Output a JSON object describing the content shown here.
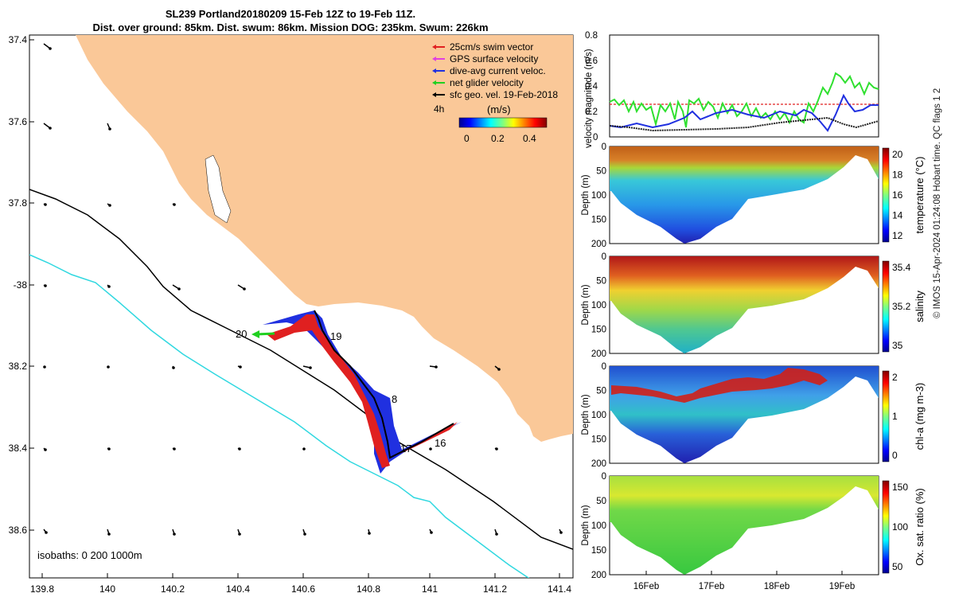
{
  "title": {
    "line1": "SL239 Portland20180209 15-Feb 12Z to 19-Feb 11Z.",
    "line2": "Dist. over ground: 85km. Dist. swum: 86km. Mission DOG: 235km. Swum: 226km"
  },
  "map": {
    "lat_ticks": [
      "37.4",
      "37.6",
      "37.8",
      "-38",
      "38.2",
      "38.4",
      "38.6"
    ],
    "lon_ticks": [
      "139.8",
      "140",
      "140.2",
      "140.4",
      "140.6",
      "140.8",
      "141",
      "141.2",
      "141.4"
    ],
    "legend": [
      {
        "label": "25cm/s swim vector",
        "color": "#e02020"
      },
      {
        "label": "GPS surface velocity",
        "color": "#e040e0"
      },
      {
        "label": "dive-avg current veloc.",
        "color": "#2030e0"
      },
      {
        "label": "net glider velocity",
        "color": "#20d020"
      },
      {
        "label": "sfc geo. vel. 19-Feb-2018",
        "color": "#000000"
      }
    ],
    "colorbar": {
      "prefix": "4h",
      "unit": "(m/s)",
      "ticks": [
        "0",
        "0.2",
        "0.4"
      ]
    },
    "day_labels": [
      "20",
      "19",
      "8",
      "17",
      "16"
    ],
    "isobath_note": "isobaths: 0   200  1000m",
    "colors": {
      "land": "#fac898",
      "shelf_line": "#000000",
      "deep_line": "#30d8e0"
    }
  },
  "panels": {
    "velocity": {
      "ylabel": "velocity magnitude (m/s)",
      "ticks": [
        "0",
        "0.2",
        "0.4",
        "0.6",
        "0.8"
      ]
    },
    "depth_ylabel": "Depth (m)",
    "depth_ticks": [
      "0",
      "50",
      "100",
      "150",
      "200"
    ],
    "temperature": {
      "label": "temperature (°C)",
      "ticks": [
        "20",
        "18",
        "16",
        "14",
        "12"
      ]
    },
    "salinity": {
      "label": "salinity",
      "ticks": [
        "35.4",
        "35.2",
        "35"
      ]
    },
    "chla": {
      "label": "chl-a (mg m-3)",
      "ticks": [
        "2",
        "1",
        "0"
      ]
    },
    "oxygen": {
      "label": "Ox. sat. ratio (%)",
      "ticks": [
        "150",
        "100",
        "50"
      ]
    },
    "date_ticks": [
      "16Feb",
      "17Feb",
      "18Feb",
      "19Feb"
    ]
  },
  "credit": "© IMOS 15-Apr-2024 01:24:08 Hobart time. QC flags 1  2"
}
